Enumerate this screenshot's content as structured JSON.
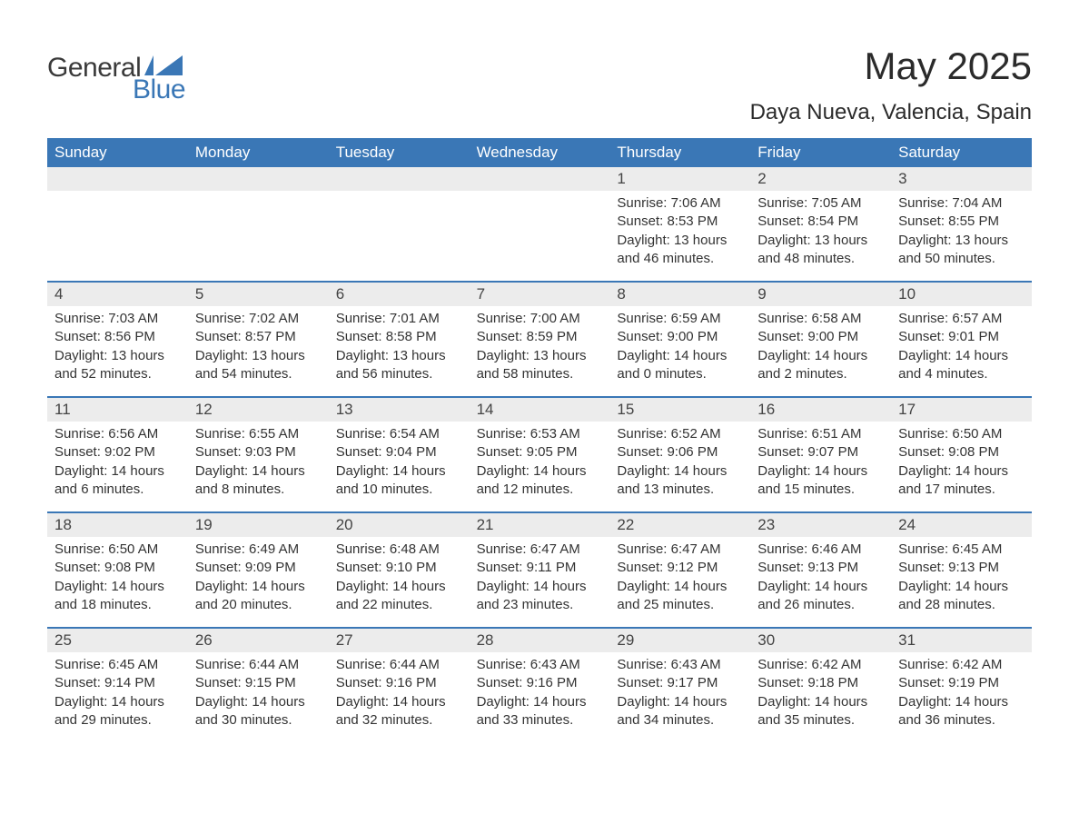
{
  "logo": {
    "text1": "General",
    "text2": "Blue",
    "icon_color": "#3a77b6"
  },
  "header": {
    "title": "May 2025",
    "subtitle": "Daya Nueva, Valencia, Spain"
  },
  "colors": {
    "header_bg": "#3a77b6",
    "header_text": "#ffffff",
    "daynum_bg": "#ececec",
    "line_color": "#3a77b6",
    "text": "#333333",
    "background": "#ffffff"
  },
  "fonts": {
    "family": "Arial, Helvetica, sans-serif",
    "title_size": 42,
    "subtitle_size": 24,
    "weekday_size": 17,
    "body_size": 15
  },
  "weekdays": [
    "Sunday",
    "Monday",
    "Tuesday",
    "Wednesday",
    "Thursday",
    "Friday",
    "Saturday"
  ],
  "weeks": [
    [
      null,
      null,
      null,
      null,
      {
        "d": "1",
        "sunrise": "7:06 AM",
        "sunset": "8:53 PM",
        "daylight": "13 hours and 46 minutes."
      },
      {
        "d": "2",
        "sunrise": "7:05 AM",
        "sunset": "8:54 PM",
        "daylight": "13 hours and 48 minutes."
      },
      {
        "d": "3",
        "sunrise": "7:04 AM",
        "sunset": "8:55 PM",
        "daylight": "13 hours and 50 minutes."
      }
    ],
    [
      {
        "d": "4",
        "sunrise": "7:03 AM",
        "sunset": "8:56 PM",
        "daylight": "13 hours and 52 minutes."
      },
      {
        "d": "5",
        "sunrise": "7:02 AM",
        "sunset": "8:57 PM",
        "daylight": "13 hours and 54 minutes."
      },
      {
        "d": "6",
        "sunrise": "7:01 AM",
        "sunset": "8:58 PM",
        "daylight": "13 hours and 56 minutes."
      },
      {
        "d": "7",
        "sunrise": "7:00 AM",
        "sunset": "8:59 PM",
        "daylight": "13 hours and 58 minutes."
      },
      {
        "d": "8",
        "sunrise": "6:59 AM",
        "sunset": "9:00 PM",
        "daylight": "14 hours and 0 minutes."
      },
      {
        "d": "9",
        "sunrise": "6:58 AM",
        "sunset": "9:00 PM",
        "daylight": "14 hours and 2 minutes."
      },
      {
        "d": "10",
        "sunrise": "6:57 AM",
        "sunset": "9:01 PM",
        "daylight": "14 hours and 4 minutes."
      }
    ],
    [
      {
        "d": "11",
        "sunrise": "6:56 AM",
        "sunset": "9:02 PM",
        "daylight": "14 hours and 6 minutes."
      },
      {
        "d": "12",
        "sunrise": "6:55 AM",
        "sunset": "9:03 PM",
        "daylight": "14 hours and 8 minutes."
      },
      {
        "d": "13",
        "sunrise": "6:54 AM",
        "sunset": "9:04 PM",
        "daylight": "14 hours and 10 minutes."
      },
      {
        "d": "14",
        "sunrise": "6:53 AM",
        "sunset": "9:05 PM",
        "daylight": "14 hours and 12 minutes."
      },
      {
        "d": "15",
        "sunrise": "6:52 AM",
        "sunset": "9:06 PM",
        "daylight": "14 hours and 13 minutes."
      },
      {
        "d": "16",
        "sunrise": "6:51 AM",
        "sunset": "9:07 PM",
        "daylight": "14 hours and 15 minutes."
      },
      {
        "d": "17",
        "sunrise": "6:50 AM",
        "sunset": "9:08 PM",
        "daylight": "14 hours and 17 minutes."
      }
    ],
    [
      {
        "d": "18",
        "sunrise": "6:50 AM",
        "sunset": "9:08 PM",
        "daylight": "14 hours and 18 minutes."
      },
      {
        "d": "19",
        "sunrise": "6:49 AM",
        "sunset": "9:09 PM",
        "daylight": "14 hours and 20 minutes."
      },
      {
        "d": "20",
        "sunrise": "6:48 AM",
        "sunset": "9:10 PM",
        "daylight": "14 hours and 22 minutes."
      },
      {
        "d": "21",
        "sunrise": "6:47 AM",
        "sunset": "9:11 PM",
        "daylight": "14 hours and 23 minutes."
      },
      {
        "d": "22",
        "sunrise": "6:47 AM",
        "sunset": "9:12 PM",
        "daylight": "14 hours and 25 minutes."
      },
      {
        "d": "23",
        "sunrise": "6:46 AM",
        "sunset": "9:13 PM",
        "daylight": "14 hours and 26 minutes."
      },
      {
        "d": "24",
        "sunrise": "6:45 AM",
        "sunset": "9:13 PM",
        "daylight": "14 hours and 28 minutes."
      }
    ],
    [
      {
        "d": "25",
        "sunrise": "6:45 AM",
        "sunset": "9:14 PM",
        "daylight": "14 hours and 29 minutes."
      },
      {
        "d": "26",
        "sunrise": "6:44 AM",
        "sunset": "9:15 PM",
        "daylight": "14 hours and 30 minutes."
      },
      {
        "d": "27",
        "sunrise": "6:44 AM",
        "sunset": "9:16 PM",
        "daylight": "14 hours and 32 minutes."
      },
      {
        "d": "28",
        "sunrise": "6:43 AM",
        "sunset": "9:16 PM",
        "daylight": "14 hours and 33 minutes."
      },
      {
        "d": "29",
        "sunrise": "6:43 AM",
        "sunset": "9:17 PM",
        "daylight": "14 hours and 34 minutes."
      },
      {
        "d": "30",
        "sunrise": "6:42 AM",
        "sunset": "9:18 PM",
        "daylight": "14 hours and 35 minutes."
      },
      {
        "d": "31",
        "sunrise": "6:42 AM",
        "sunset": "9:19 PM",
        "daylight": "14 hours and 36 minutes."
      }
    ]
  ],
  "labels": {
    "sunrise": "Sunrise:",
    "sunset": "Sunset:",
    "daylight": "Daylight:"
  }
}
